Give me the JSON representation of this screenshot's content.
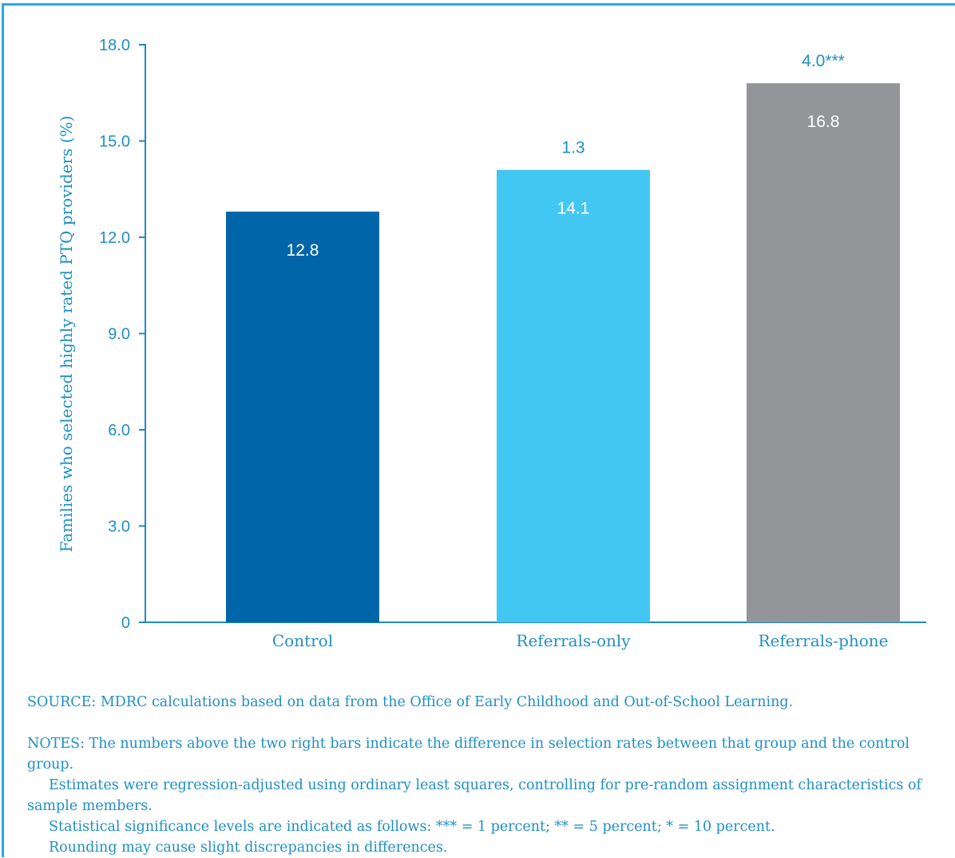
{
  "chart_data": {
    "type": "bar",
    "categories": [
      "Control",
      "Referrals-only",
      "Referrals-phone"
    ],
    "values": [
      12.8,
      14.1,
      16.8
    ],
    "value_labels": [
      "12.8",
      "14.1",
      "16.8"
    ],
    "difference_labels": [
      "",
      "1.3",
      "4.0***"
    ],
    "title": "",
    "xlabel": "",
    "ylabel": "Families who selected highly rated PTQ providers (%)",
    "ylim": [
      0,
      18
    ],
    "yticks": [
      0,
      3,
      6,
      9,
      12,
      15,
      18
    ],
    "ytick_labels": [
      "0",
      "3.0",
      "6.0",
      "9.0",
      "12.0",
      "15.0",
      "18.0"
    ],
    "grid": false,
    "legend": "none",
    "colors": [
      "#0066a9",
      "#42c7f2",
      "#939598"
    ],
    "axis_color": "#2387c6",
    "text_color": "#1f8fc6",
    "frame_color": "#29a9e1"
  },
  "notes": {
    "source": "SOURCE: MDRC calculations based on data from the Office of Early Childhood and Out-of-School Learning.",
    "notes_line1": "NOTES: The numbers above the two right bars indicate the difference in selection rates between that group and the control group.",
    "notes_line2": "Estimates were regression-adjusted using ordinary least squares, controlling for pre-random assignment characteristics of sample members.",
    "notes_line3": "Statistical significance levels are indicated as follows: *** = 1 percent; ** = 5 percent; * = 10 percent.",
    "notes_line4": "Rounding may cause slight discrepancies in differences."
  }
}
